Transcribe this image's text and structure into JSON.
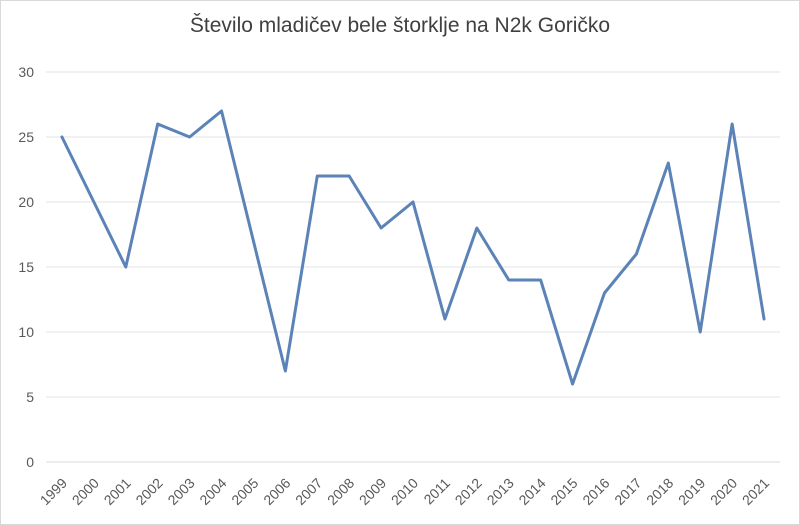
{
  "chart_data": {
    "type": "line",
    "title": "Število mladičev bele štorklje na N2k Goričko",
    "xlabel": "",
    "ylabel": "",
    "x": [
      "1999",
      "2000",
      "2001",
      "2002",
      "2003",
      "2004",
      "2005",
      "2006",
      "2007",
      "2008",
      "2009",
      "2010",
      "2011",
      "2012",
      "2013",
      "2014",
      "2015",
      "2016",
      "2017",
      "2018",
      "2019",
      "2020",
      "2021"
    ],
    "series": [
      {
        "values": [
          25,
          20,
          15,
          26,
          25,
          27,
          17,
          7,
          22,
          22,
          18,
          20,
          11,
          18,
          14,
          14,
          6,
          13,
          16,
          23,
          10,
          26,
          11
        ],
        "color": "#5b83b8"
      }
    ],
    "ylim": [
      0,
      30
    ],
    "yticks": [
      0,
      5,
      10,
      15,
      20,
      25,
      30
    ],
    "grid": true,
    "legend": "none"
  }
}
